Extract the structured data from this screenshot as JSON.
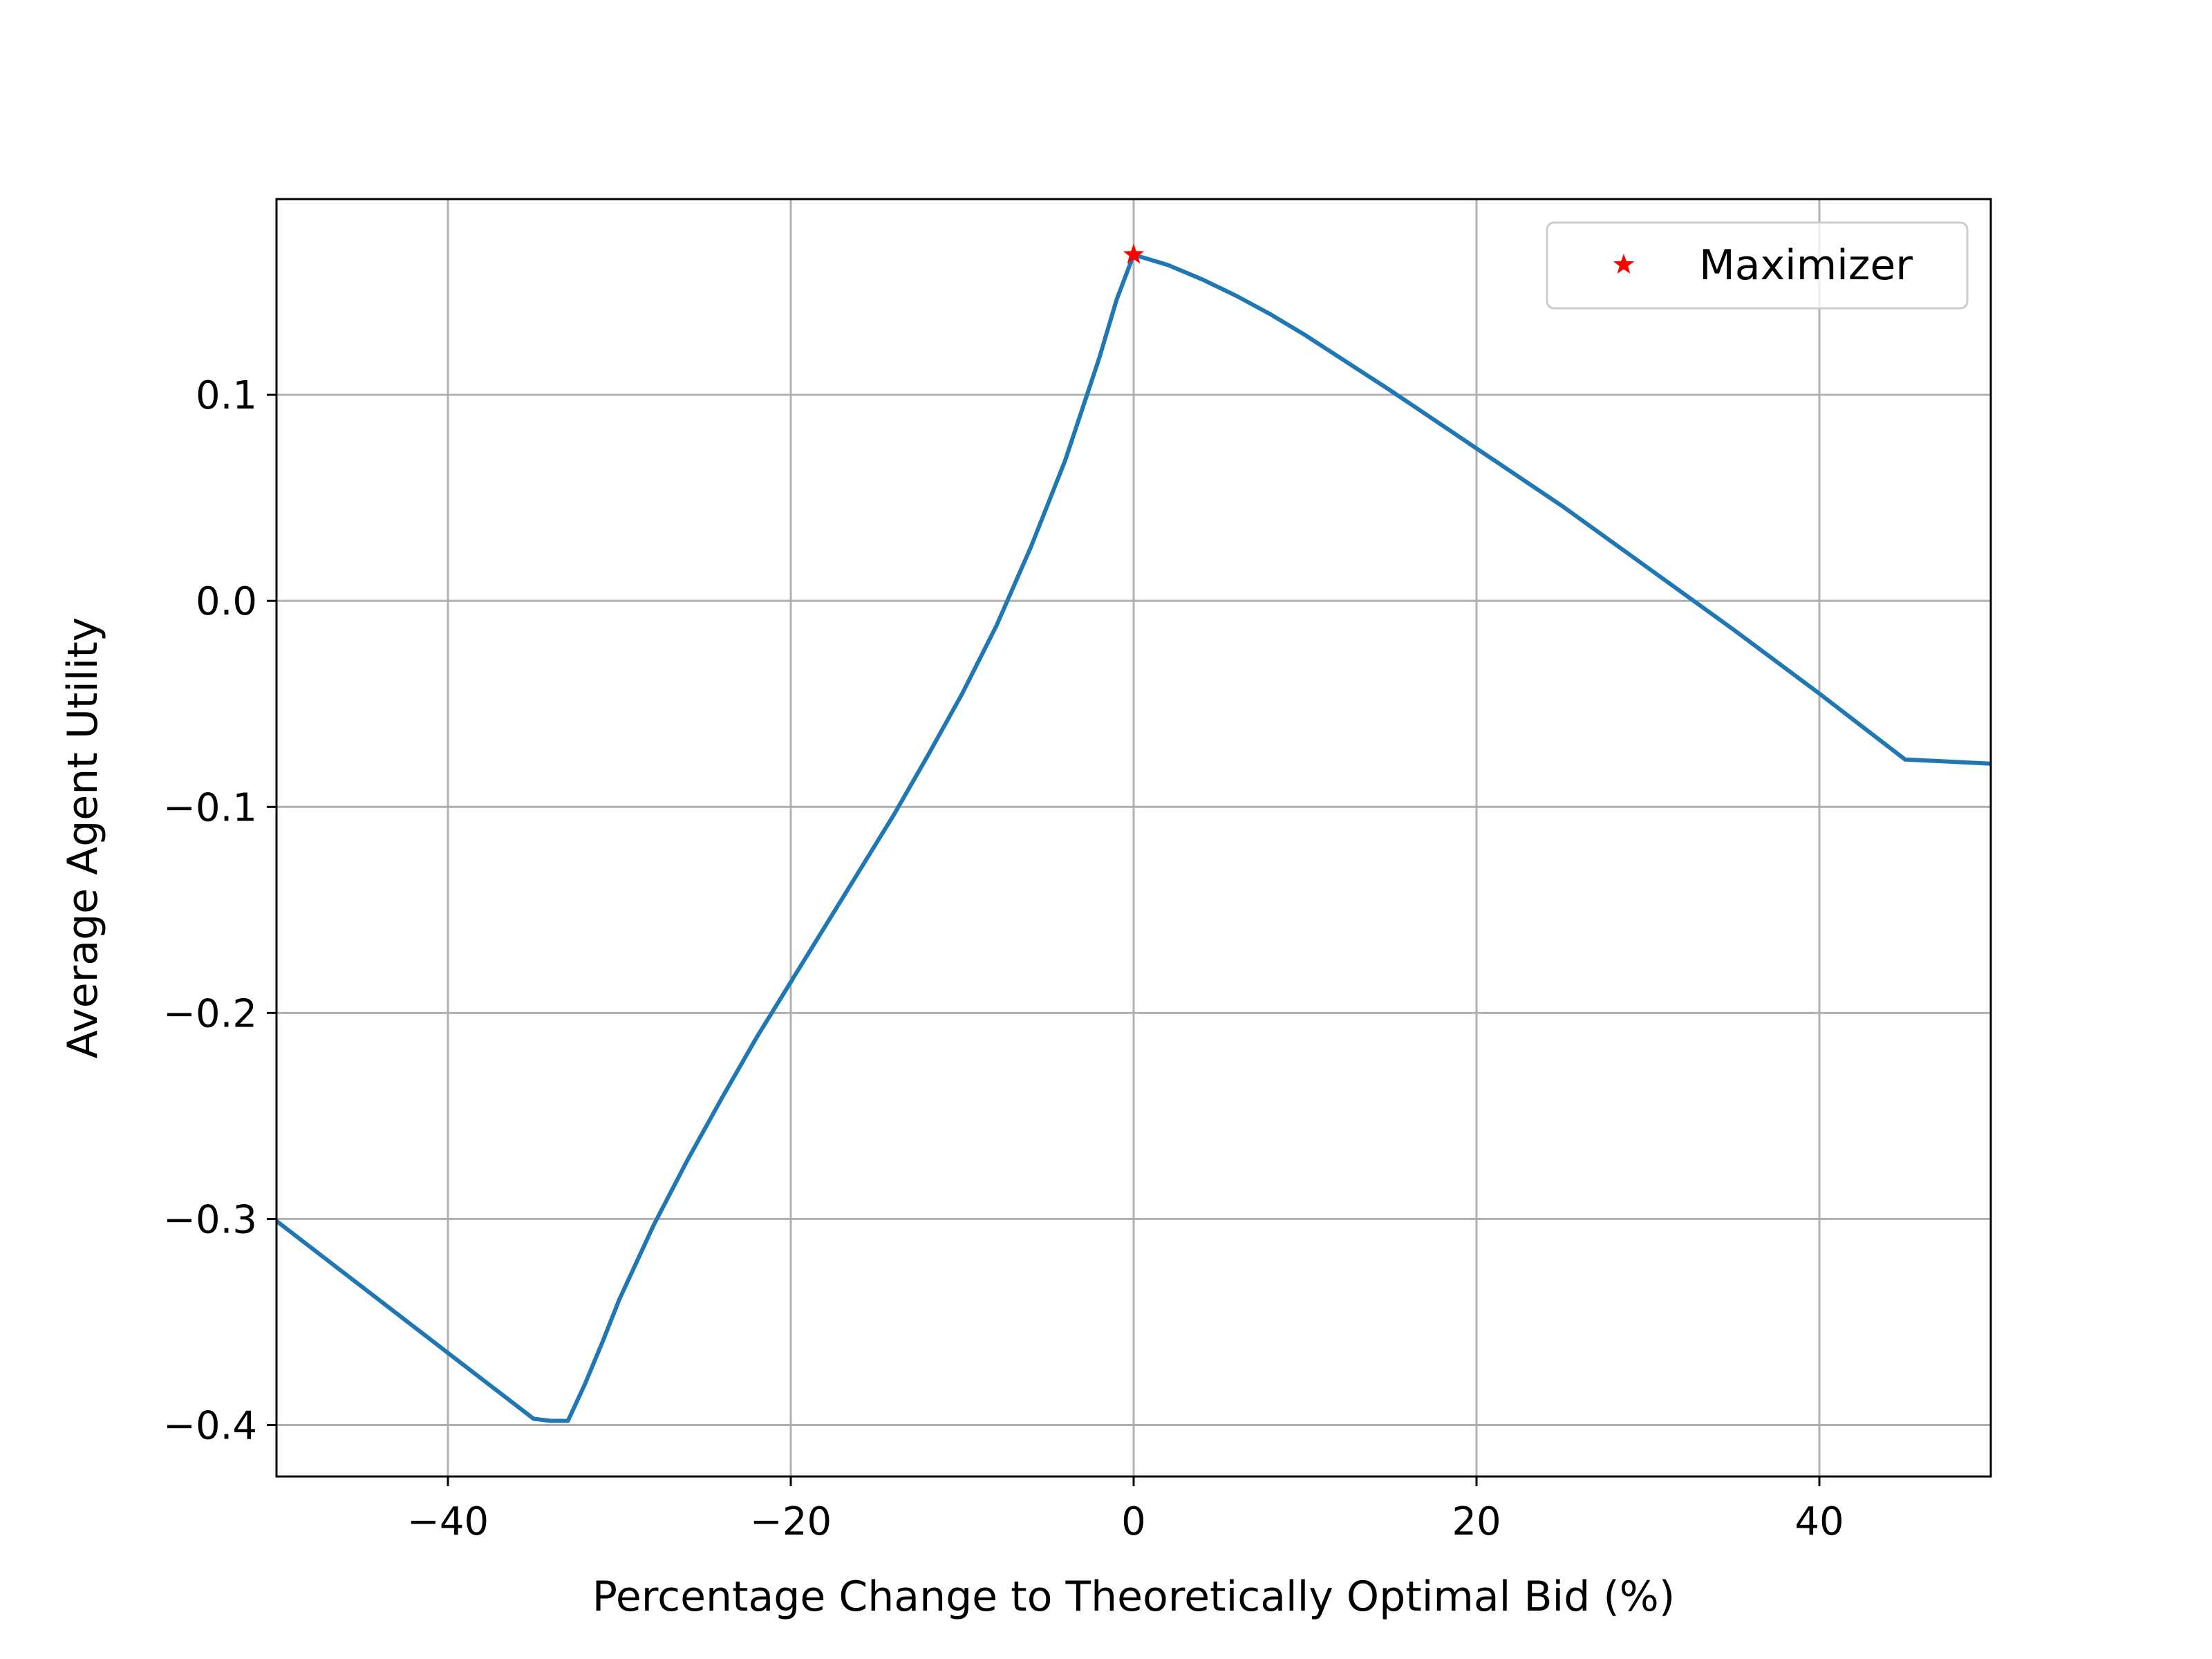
{
  "chart_data": {
    "type": "line",
    "title": "",
    "xlabel": "Percentage Change to Theoretically Optimal Bid (%)",
    "ylabel": "Average Agent Utility",
    "xlim": [
      -50,
      50
    ],
    "ylim": [
      -0.425,
      0.195
    ],
    "xticks": [
      -40,
      -20,
      0,
      20,
      40
    ],
    "xtick_labels": [
      "−40",
      "−20",
      "0",
      "20",
      "40"
    ],
    "yticks": [
      -0.4,
      -0.3,
      -0.2,
      -0.1,
      0.0,
      0.1
    ],
    "ytick_labels": [
      "−0.4",
      "−0.3",
      "−0.2",
      "−0.1",
      "0.0",
      "0.1"
    ],
    "grid": true,
    "legend_position": "top-right",
    "series": [
      {
        "color": "#1f77b4",
        "x": [
          -50,
          -45,
          -40,
          -35,
          -34,
          -33,
          -32,
          -31,
          -30,
          -28,
          -26,
          -24,
          -22,
          -20,
          -18,
          -16,
          -14,
          -12,
          -10,
          -8,
          -6,
          -4,
          -3,
          -2,
          -1,
          0,
          2,
          4,
          6,
          8,
          10,
          15,
          20,
          25,
          30,
          35,
          40,
          45,
          50
        ],
        "y": [
          -0.301,
          -0.333,
          -0.365,
          -0.397,
          -0.398,
          -0.398,
          -0.38,
          -0.36,
          -0.339,
          -0.303,
          -0.271,
          -0.241,
          -0.212,
          -0.185,
          -0.158,
          -0.131,
          -0.104,
          -0.075,
          -0.045,
          -0.012,
          0.026,
          0.068,
          0.093,
          0.118,
          0.146,
          0.168,
          0.163,
          0.156,
          0.148,
          0.139,
          0.129,
          0.102,
          0.074,
          0.046,
          0.016,
          -0.014,
          -0.045,
          -0.077,
          -0.079
        ]
      },
      {
        "name": "Maximizer",
        "color": "#ff0000",
        "marker": "star",
        "x": [
          0
        ],
        "y": [
          0.168
        ]
      }
    ]
  }
}
